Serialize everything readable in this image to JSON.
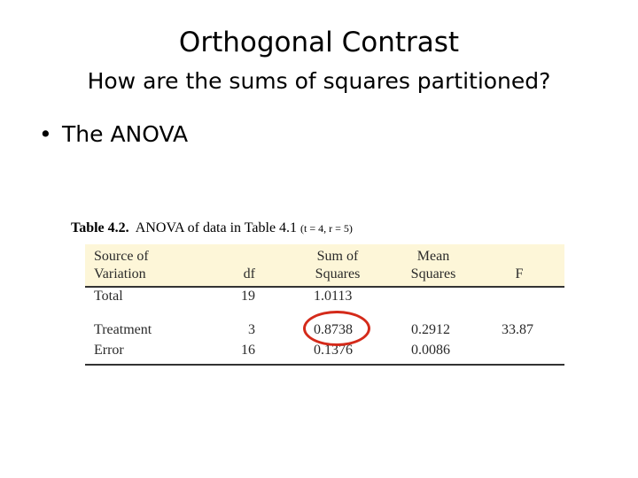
{
  "slide": {
    "title": "Orthogonal Contrast",
    "subtitle": "How are the sums of squares partitioned?",
    "bullet": "The ANOVA",
    "bullet_marker": "•"
  },
  "table": {
    "caption_label": "Table 4.2.",
    "caption_text": "ANOVA of data in Table 4.1",
    "caption_params": "(t = 4, r = 5)",
    "headers": {
      "source_line1": "Source of",
      "source_line2": "Variation",
      "df": "df",
      "ss_line1": "Sum of",
      "ss_line2": "Squares",
      "ms_line1": "Mean",
      "ms_line2": "Squares",
      "f": "F"
    },
    "rows": [
      {
        "source": "Total",
        "df": "19",
        "ss": "1.0113",
        "ms": "",
        "f": ""
      },
      {
        "source": "Treatment",
        "df": "3",
        "ss": "0.8738",
        "ms": "0.2912",
        "f": "33.87"
      },
      {
        "source": "Error",
        "df": "16",
        "ss": "0.1376",
        "ms": "0.0086",
        "f": ""
      }
    ],
    "highlight_color": "#d42a1a",
    "header_background": "#fdf6d8"
  }
}
